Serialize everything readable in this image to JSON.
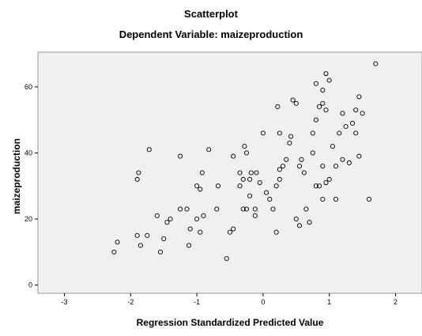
{
  "chart_data": {
    "type": "scatter",
    "title": "Scatterplot",
    "subtitle": "Dependent Variable: maizeproduction",
    "xlabel": "Regression Standardized Predicted Value",
    "ylabel": "maizeproduction",
    "xlim": [
      -3.4,
      2.4
    ],
    "ylim": [
      -2.5,
      70.5
    ],
    "x_ticks": [
      -3,
      -2,
      -1,
      0,
      1,
      2
    ],
    "y_ticks": [
      0,
      20,
      40,
      60
    ],
    "grid": false,
    "legend": "none",
    "background_color": "#f0f0f0",
    "marker_color": "#000000",
    "points": [
      [
        -2.25,
        10
      ],
      [
        -2.2,
        13
      ],
      [
        -1.9,
        15
      ],
      [
        -1.85,
        12
      ],
      [
        -1.75,
        15
      ],
      [
        -1.6,
        21
      ],
      [
        -1.55,
        10
      ],
      [
        -1.5,
        14
      ],
      [
        -1.45,
        19
      ],
      [
        -1.4,
        20
      ],
      [
        -1.25,
        23
      ],
      [
        -1.15,
        23
      ],
      [
        -1.12,
        12
      ],
      [
        -1.1,
        17
      ],
      [
        -1.0,
        20
      ],
      [
        -0.95,
        16
      ],
      [
        -0.9,
        21
      ],
      [
        -0.7,
        23
      ],
      [
        -1.9,
        32
      ],
      [
        -1.88,
        34
      ],
      [
        -1.72,
        41
      ],
      [
        -1.25,
        39
      ],
      [
        -1.0,
        30
      ],
      [
        -0.95,
        29
      ],
      [
        -0.92,
        34
      ],
      [
        -0.82,
        41
      ],
      [
        -0.68,
        30
      ],
      [
        -0.55,
        8
      ],
      [
        -0.5,
        16
      ],
      [
        -0.45,
        17
      ],
      [
        -0.45,
        39
      ],
      [
        -0.35,
        34
      ],
      [
        -0.3,
        32
      ],
      [
        -0.28,
        42
      ],
      [
        -0.25,
        40
      ],
      [
        -0.25,
        23
      ],
      [
        -0.2,
        32
      ],
      [
        -0.2,
        27
      ],
      [
        -0.18,
        34
      ],
      [
        -0.12,
        23
      ],
      [
        -0.12,
        21
      ],
      [
        -0.1,
        34
      ],
      [
        -0.05,
        31
      ],
      [
        0.0,
        46
      ],
      [
        0.1,
        26
      ],
      [
        0.15,
        23
      ],
      [
        0.2,
        30
      ],
      [
        0.25,
        32
      ],
      [
        0.25,
        35
      ],
      [
        0.3,
        36
      ],
      [
        0.2,
        16
      ],
      [
        0.22,
        54
      ],
      [
        0.25,
        46
      ],
      [
        0.35,
        38
      ],
      [
        0.4,
        43
      ],
      [
        0.42,
        45
      ],
      [
        0.45,
        56
      ],
      [
        0.5,
        55
      ],
      [
        0.55,
        36
      ],
      [
        0.58,
        38
      ],
      [
        0.62,
        34
      ],
      [
        0.5,
        20
      ],
      [
        0.55,
        18
      ],
      [
        0.65,
        23
      ],
      [
        0.7,
        19
      ],
      [
        0.75,
        40
      ],
      [
        0.75,
        46
      ],
      [
        0.8,
        50
      ],
      [
        0.8,
        61
      ],
      [
        0.85,
        54
      ],
      [
        0.9,
        55
      ],
      [
        0.9,
        59
      ],
      [
        0.95,
        64
      ],
      [
        0.95,
        53
      ],
      [
        1.0,
        62
      ],
      [
        0.8,
        30
      ],
      [
        0.85,
        30
      ],
      [
        0.9,
        36
      ],
      [
        0.9,
        26
      ],
      [
        0.95,
        31
      ],
      [
        1.0,
        32
      ],
      [
        1.05,
        42
      ],
      [
        1.1,
        26
      ],
      [
        1.1,
        36
      ],
      [
        1.15,
        46
      ],
      [
        1.2,
        52
      ],
      [
        1.2,
        38
      ],
      [
        1.25,
        48
      ],
      [
        1.3,
        37
      ],
      [
        1.35,
        49
      ],
      [
        1.4,
        53
      ],
      [
        1.4,
        46
      ],
      [
        1.45,
        57
      ],
      [
        1.45,
        39
      ],
      [
        1.5,
        52
      ],
      [
        1.6,
        26
      ],
      [
        1.7,
        67
      ],
      [
        -0.3,
        23
      ],
      [
        -0.35,
        30
      ],
      [
        0.05,
        28
      ]
    ]
  }
}
